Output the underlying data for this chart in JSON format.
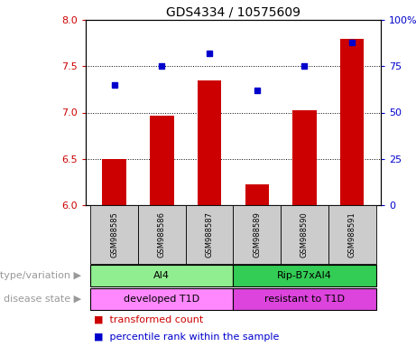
{
  "title": "GDS4334 / 10575609",
  "samples": [
    "GSM988585",
    "GSM988586",
    "GSM988587",
    "GSM988589",
    "GSM988590",
    "GSM988591"
  ],
  "bar_values": [
    6.5,
    6.97,
    7.35,
    6.22,
    7.02,
    7.8
  ],
  "percentile_values": [
    65,
    75,
    82,
    62,
    75,
    88
  ],
  "ylim_left": [
    6,
    8
  ],
  "ylim_right": [
    0,
    100
  ],
  "yticks_left": [
    6,
    6.5,
    7,
    7.5,
    8
  ],
  "yticks_right": [
    0,
    25,
    50,
    75,
    100
  ],
  "bar_color": "#cc0000",
  "dot_color": "#0000cc",
  "grid_color": "black",
  "bar_width": 0.5,
  "group1_label": "AI4",
  "group2_label": "Rip-B7xAI4",
  "disease1_label": "developed T1D",
  "disease2_label": "resistant to T1D",
  "genotype_label": "genotype/variation",
  "disease_label": "disease state",
  "legend_bar": "transformed count",
  "legend_dot": "percentile rank within the sample",
  "group1_color": "#90ee90",
  "group2_color": "#33cc55",
  "disease1_color": "#ff88ff",
  "disease2_color": "#dd44dd",
  "tick_label_color_left": "#cc0000",
  "tick_label_color_right": "#0000cc",
  "annotation_label_color": "#999999",
  "sample_box_color": "#cccccc",
  "title_fontsize": 10,
  "tick_fontsize": 8,
  "sample_fontsize": 6,
  "annotation_fontsize": 8,
  "legend_fontsize": 8
}
